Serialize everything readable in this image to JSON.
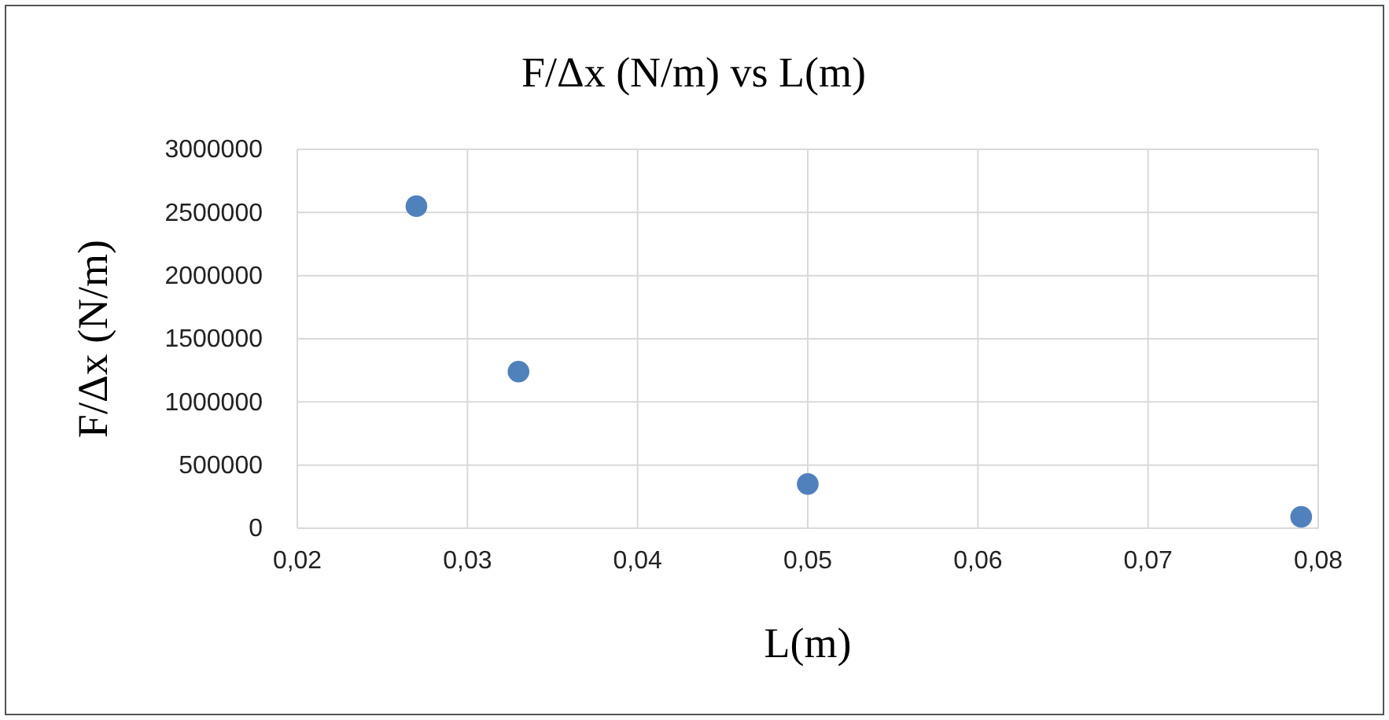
{
  "chart_data": {
    "type": "scatter",
    "title": "F/Δx (N/m) vs L(m)",
    "xlabel": "L(m)",
    "ylabel": "F/Δx (N/m)",
    "x": [
      0.027,
      0.033,
      0.05,
      0.079
    ],
    "series": [
      {
        "color": "#4f81bd",
        "values": [
          2550000,
          1240000,
          350000,
          90000
        ]
      }
    ],
    "xlim": [
      0.02,
      0.08
    ],
    "xticks": [
      {
        "value": 0.02,
        "label": "0,02"
      },
      {
        "value": 0.03,
        "label": "0,03"
      },
      {
        "value": 0.04,
        "label": "0,04"
      },
      {
        "value": 0.05,
        "label": "0,05"
      },
      {
        "value": 0.06,
        "label": "0,06"
      },
      {
        "value": 0.07,
        "label": "0,07"
      },
      {
        "value": 0.08,
        "label": "0,08"
      }
    ],
    "ylim": [
      0,
      3000000
    ],
    "yticks": [
      0,
      500000,
      1000000,
      1500000,
      2000000,
      2500000,
      3000000
    ],
    "grid": true,
    "marker": "circle"
  }
}
